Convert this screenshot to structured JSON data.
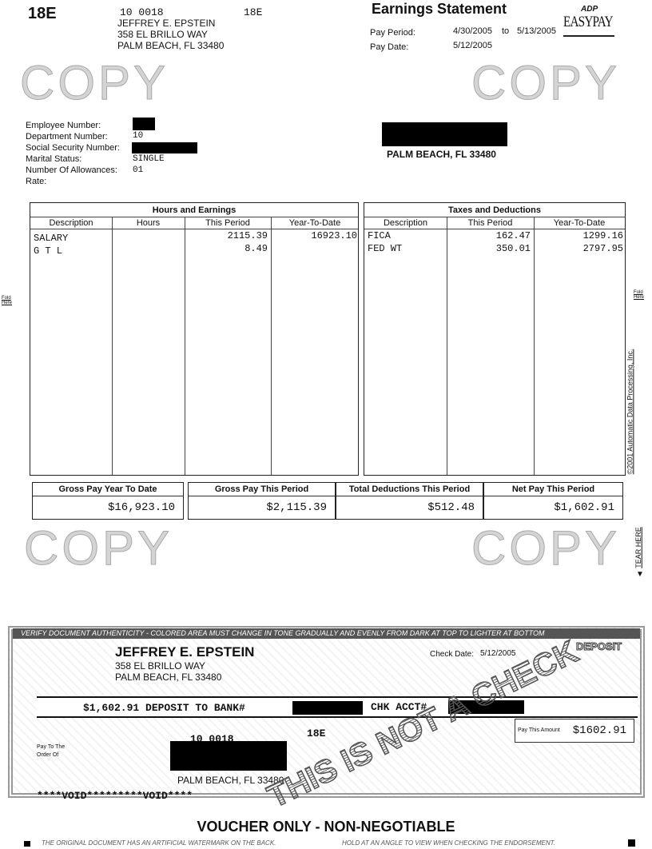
{
  "header": {
    "code_left": "18E",
    "dept_emp": "10 0018",
    "code_right": "18E",
    "name": "JEFFREY E. EPSTEIN",
    "address1": "358 EL BRILLO WAY",
    "address2": "PALM BEACH, FL 33480",
    "title": "Earnings Statement",
    "logo": "ADP EASYPAY",
    "pay_period_label": "Pay Period:",
    "pay_period_start": "4/30/2005",
    "pay_period_to": "to",
    "pay_period_end": "5/13/2005",
    "pay_date_label": "Pay Date:",
    "pay_date": "5/12/2005"
  },
  "employee": {
    "employee_number_label": "Employee Number:",
    "department_number_label": "Department Number:",
    "department_number": "10",
    "ssn_label": "Social Security Number:",
    "marital_status_label": "Marital Status:",
    "marital_status": "SINGLE",
    "allowances_label": "Number Of Allowances:",
    "allowances": "01",
    "rate_label": "Rate:",
    "mail_city": "PALM BEACH, FL 33480"
  },
  "earnings": {
    "title": "Hours and Earnings",
    "columns": [
      "Description",
      "Hours",
      "This Period",
      "Year-To-Date"
    ],
    "rows": [
      {
        "description": "SALARY",
        "hours": "",
        "this_period": "2115.39",
        "ytd": "16923.10"
      },
      {
        "description": "G T L",
        "hours": "",
        "this_period": "8.49",
        "ytd": ""
      }
    ]
  },
  "taxes": {
    "title": "Taxes and Deductions",
    "columns": [
      "Description",
      "This Period",
      "Year-To-Date"
    ],
    "rows": [
      {
        "description": "FICA",
        "this_period": "162.47",
        "ytd": "1299.16"
      },
      {
        "description": "FED WT",
        "this_period": "350.01",
        "ytd": "2797.95"
      }
    ]
  },
  "summary": {
    "gross_ytd_label": "Gross Pay Year To Date",
    "gross_ytd": "$16,923.10",
    "gross_period_label": "Gross Pay This Period",
    "gross_period": "$2,115.39",
    "deductions_label": "Total Deductions This Period",
    "deductions": "$512.48",
    "net_label": "Net Pay This Period",
    "net": "$1,602.91"
  },
  "margin": {
    "fold_here": "Fold Here",
    "copyright": "©2001 Automatic Data Processing, Inc.",
    "tear_here": "TEAR HERE",
    "watermark": "COPY"
  },
  "check": {
    "banner": "VERIFY DOCUMENT AUTHENTICITY - COLORED AREA MUST CHANGE IN TONE GRADUALLY AND EVENLY FROM DARK AT TOP TO LIGHTER AT BOTTOM",
    "deposit_label": "DEPOSIT",
    "name": "JEFFREY E. EPSTEIN",
    "address1": "358 EL BRILLO WAY",
    "address2": "PALM BEACH, FL 33480",
    "check_date_label": "Check Date:",
    "check_date": "5/12/2005",
    "deposit_line": "$1,602.91 DEPOSIT TO BANK#",
    "chk_acct_label": "CHK ACCT#",
    "pay_amount_label": "Pay This Amount",
    "pay_amount": "$1602.91",
    "dept_emp": "10 0018",
    "code": "18E",
    "payee_city": "PALM BEACH, FL 33480",
    "pay_to_label1": "Pay To The",
    "pay_to_label2": "Order Of",
    "void_line": "****VOID*********VOID****",
    "not_check": "THIS IS NOT A CHECK"
  },
  "footer": {
    "voucher": "VOUCHER ONLY - NON-NEGOTIABLE",
    "note_left": "THE ORIGINAL DOCUMENT HAS AN ARTIFICIAL WATERMARK ON THE BACK.",
    "note_right": "HOLD AT AN ANGLE TO VIEW WHEN CHECKING THE ENDORSEMENT."
  }
}
